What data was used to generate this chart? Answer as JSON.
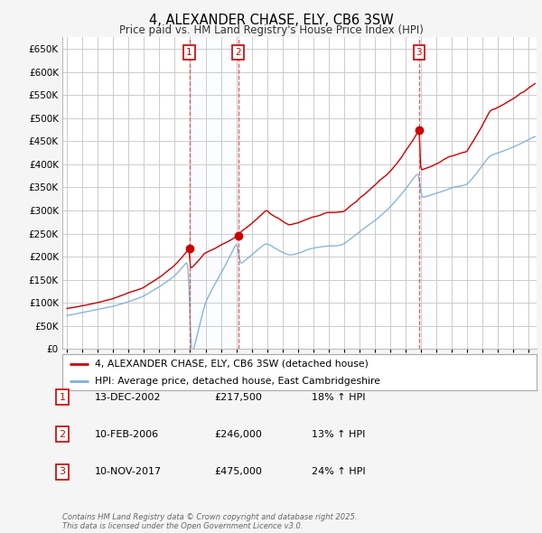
{
  "title": "4, ALEXANDER CHASE, ELY, CB6 3SW",
  "subtitle": "Price paid vs. HM Land Registry's House Price Index (HPI)",
  "ylim": [
    0,
    675000
  ],
  "yticks": [
    0,
    50000,
    100000,
    150000,
    200000,
    250000,
    300000,
    350000,
    400000,
    450000,
    500000,
    550000,
    600000,
    650000
  ],
  "xlim_start": 1994.7,
  "xlim_end": 2025.5,
  "background_color": "#f5f5f5",
  "plot_bg_color": "#ffffff",
  "grid_color": "#cccccc",
  "line1_color": "#cc0000",
  "line2_color": "#7bafd4",
  "sale_marker_color": "#cc0000",
  "vline_color": "#dd3333",
  "shade_color": "#ddeeff",
  "legend1": "4, ALEXANDER CHASE, ELY, CB6 3SW (detached house)",
  "legend2": "HPI: Average price, detached house, East Cambridgeshire",
  "transactions": [
    {
      "label": "1",
      "date": 2002.95,
      "price": 217500,
      "pct": "18%",
      "date_str": "13-DEC-2002",
      "price_str": "£217,500"
    },
    {
      "label": "2",
      "date": 2006.12,
      "price": 246000,
      "pct": "13%",
      "date_str": "10-FEB-2006",
      "price_str": "£246,000"
    },
    {
      "label": "3",
      "date": 2017.87,
      "price": 475000,
      "pct": "24%",
      "date_str": "10-NOV-2017",
      "price_str": "£475,000"
    }
  ],
  "footer": "Contains HM Land Registry data © Crown copyright and database right 2025.\nThis data is licensed under the Open Government Licence v3.0."
}
